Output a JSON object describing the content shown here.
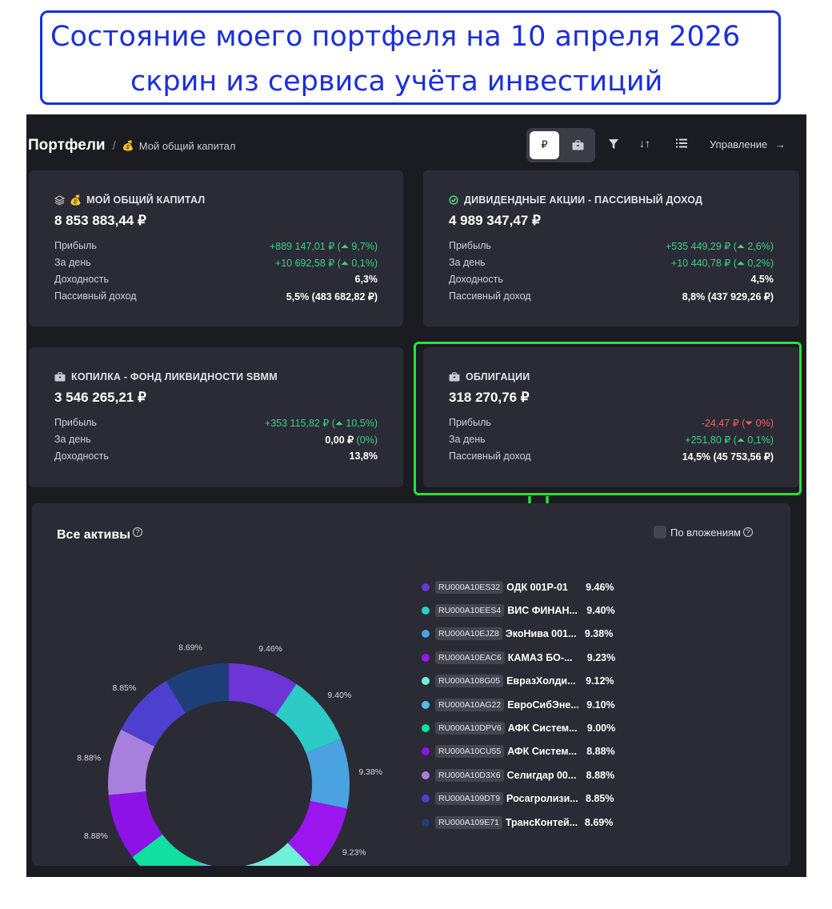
{
  "banner": {
    "line1": "Состояние моего портфеля на 10 апреля 2026",
    "line2": "скрин из сервиса учёта инвестиций"
  },
  "header": {
    "title": "Портфели",
    "separator": "/",
    "portfolio_name": "Мой общий капитал",
    "currency_symbol": "₽",
    "manage_label": "Управление"
  },
  "cards": [
    {
      "title": "МОЙ ОБЩИЙ КАПИТАЛ",
      "total": "8 853 883,44 ₽",
      "rows": [
        {
          "label": "Прибыль",
          "value": "+889 147,01 ₽ (⏶ 9,7%)",
          "tone": "pos"
        },
        {
          "label": "За день",
          "value": "+10 692,58 ₽ (⏶ 0,1%)",
          "tone": "pos"
        },
        {
          "label": "Доходность",
          "value": "6,3%",
          "tone": ""
        },
        {
          "label": "Пассивный доход",
          "value": "5,5% (483 682,82 ₽)",
          "tone": ""
        }
      ]
    },
    {
      "title": "ДИВИДЕНДНЫЕ АКЦИИ - ПАССИВНЫЙ ДОХОД",
      "total": "4 989 347,47 ₽",
      "rows": [
        {
          "label": "Прибыль",
          "value": "+535 449,29 ₽ (⏶ 2,6%)",
          "tone": "pos"
        },
        {
          "label": "За день",
          "value": "+10 440,78 ₽ (⏶ 0,2%)",
          "tone": "pos"
        },
        {
          "label": "Доходность",
          "value": "4,5%",
          "tone": ""
        },
        {
          "label": "Пассивный доход",
          "value": "8,8% (437 929,26 ₽)",
          "tone": ""
        }
      ]
    },
    {
      "title": "КОПИЛКА - ФОНД ЛИКВИДНОСТИ SBMM",
      "total": "3 546 265,21 ₽",
      "rows": [
        {
          "label": "Прибыль",
          "value": "+353 115,82 ₽ (⏶ 10,5%)",
          "tone": "pos"
        },
        {
          "label": "За день",
          "value": "0,00 ₽ (0%)",
          "tone": "pos"
        },
        {
          "label": "Доходность",
          "value": "13,8%",
          "tone": ""
        }
      ]
    },
    {
      "title": "ОБЛИГАЦИИ",
      "total": "318 270,76 ₽",
      "rows": [
        {
          "label": "Прибыль",
          "value": "-24,47 ₽ (⏷ 0%)",
          "tone": "neg"
        },
        {
          "label": "За день",
          "value": "+251,80 ₽ (⏶ 0,1%)",
          "tone": "pos"
        },
        {
          "label": "Пассивный доход",
          "value": "14,5% (45 753,56 ₽)",
          "tone": ""
        }
      ]
    }
  ],
  "assets": {
    "title": "Все активы",
    "by_investment_label": "По вложениям",
    "help_glyph": "?"
  },
  "chart_data": {
    "type": "pie",
    "title": "Все активы",
    "unit": "%",
    "slices": [
      {
        "isin": "RU000A10ES32",
        "name": "ОДК 001Р-01",
        "value": 9.46,
        "label": "9.46%",
        "color": "#6d34d8"
      },
      {
        "isin": "RU000A10EES4",
        "name": "ВИС ФИНАН...",
        "value": 9.4,
        "label": "9.40%",
        "color": "#2ccbc6"
      },
      {
        "isin": "RU000A10EJZ8",
        "name": "ЭкоНива 001...",
        "value": 9.38,
        "label": "9.38%",
        "color": "#4aa2e0"
      },
      {
        "isin": "RU000A10EAC6",
        "name": "КАМАЗ БО-...",
        "value": 9.23,
        "label": "9.23%",
        "color": "#9b16ee"
      },
      {
        "isin": "RU000A108G05",
        "name": "ЕвразХолди...",
        "value": 9.12,
        "label": "9.12%",
        "color": "#6ff0d8"
      },
      {
        "isin": "RU000A10AG22",
        "name": "ЕвроСибЭне...",
        "value": 9.1,
        "label": "9.10%",
        "color": "#4bc0e8"
      },
      {
        "isin": "RU000A10DPV6",
        "name": "АФК Систем...",
        "value": 9.0,
        "label": "9.00%",
        "color": "#0fe0a0"
      },
      {
        "isin": "RU000A10CU55",
        "name": "АФК Систем...",
        "value": 8.88,
        "label": "8.88%",
        "color": "#8c12e8"
      },
      {
        "isin": "RU000A10D3X6",
        "name": "Селигдар 00...",
        "value": 8.88,
        "label": "8.88%",
        "color": "#a680dc"
      },
      {
        "isin": "RU000A109DT9",
        "name": "Росагролизи...",
        "value": 8.85,
        "label": "8.85%",
        "color": "#4d40d0"
      },
      {
        "isin": "RU000A109E71",
        "name": "ТрансКонтей...",
        "value": 8.69,
        "label": "8.69%",
        "color": "#1c3f77"
      }
    ]
  }
}
